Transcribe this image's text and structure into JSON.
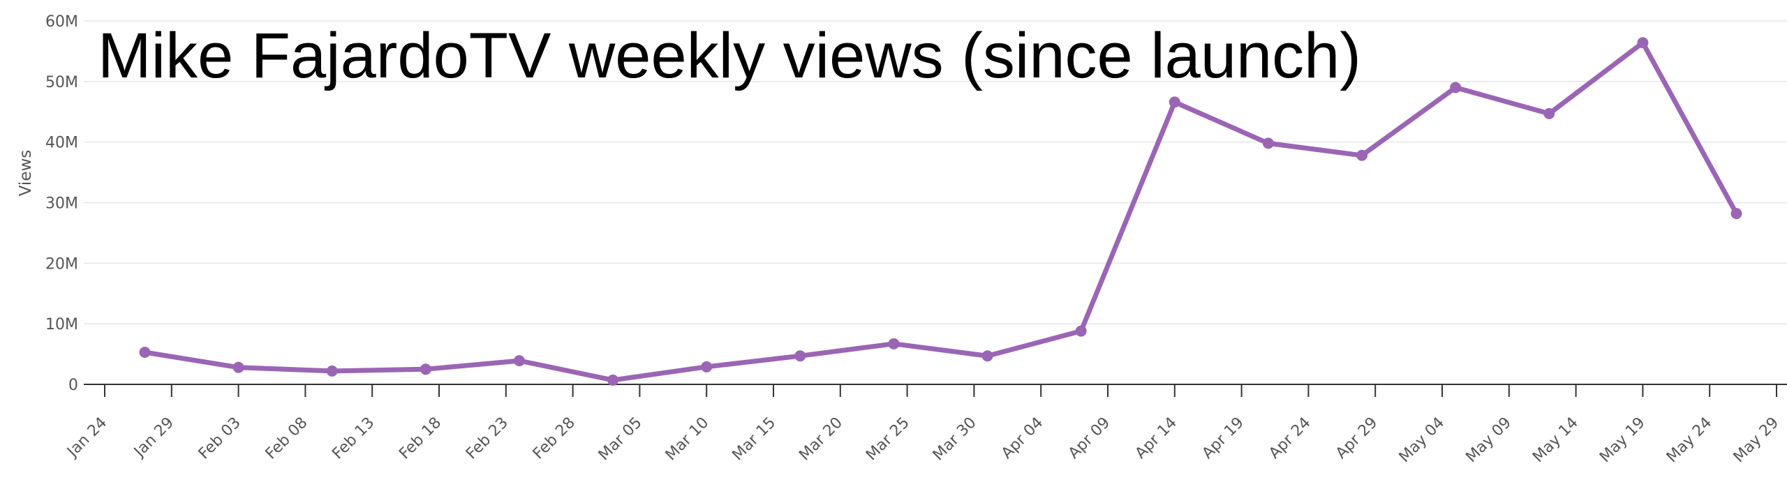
{
  "chart_data": {
    "type": "line",
    "title": "Mike FajardoTV weekly views (since launch)",
    "xlabel": "",
    "ylabel": "Views",
    "y_ticks": [
      {
        "value": 0,
        "label": "0"
      },
      {
        "value": 10000000,
        "label": "10M"
      },
      {
        "value": 20000000,
        "label": "20M"
      },
      {
        "value": 30000000,
        "label": "30M"
      },
      {
        "value": 40000000,
        "label": "40M"
      },
      {
        "value": 50000000,
        "label": "50M"
      },
      {
        "value": 60000000,
        "label": "60M"
      }
    ],
    "ylim": [
      0,
      60000000
    ],
    "xlim": [
      "2022-01-24",
      "2022-05-29"
    ],
    "x_tick_labels": [
      {
        "date": "2022-01-24",
        "label": "Jan 24"
      },
      {
        "date": "2022-01-29",
        "label": "Jan 29"
      },
      {
        "date": "2022-02-03",
        "label": "Feb 03"
      },
      {
        "date": "2022-02-08",
        "label": "Feb 08"
      },
      {
        "date": "2022-02-13",
        "label": "Feb 13"
      },
      {
        "date": "2022-02-18",
        "label": "Feb 18"
      },
      {
        "date": "2022-02-23",
        "label": "Feb 23"
      },
      {
        "date": "2022-02-28",
        "label": "Feb 28"
      },
      {
        "date": "2022-03-05",
        "label": "Mar 05"
      },
      {
        "date": "2022-03-10",
        "label": "Mar 10"
      },
      {
        "date": "2022-03-15",
        "label": "Mar 15"
      },
      {
        "date": "2022-03-20",
        "label": "Mar 20"
      },
      {
        "date": "2022-03-25",
        "label": "Mar 25"
      },
      {
        "date": "2022-03-30",
        "label": "Mar 30"
      },
      {
        "date": "2022-04-04",
        "label": "Apr 04"
      },
      {
        "date": "2022-04-09",
        "label": "Apr 09"
      },
      {
        "date": "2022-04-14",
        "label": "Apr 14"
      },
      {
        "date": "2022-04-19",
        "label": "Apr 19"
      },
      {
        "date": "2022-04-24",
        "label": "Apr 24"
      },
      {
        "date": "2022-04-29",
        "label": "Apr 29"
      },
      {
        "date": "2022-05-04",
        "label": "May 04"
      },
      {
        "date": "2022-05-09",
        "label": "May 09"
      },
      {
        "date": "2022-05-14",
        "label": "May 14"
      },
      {
        "date": "2022-05-19",
        "label": "May 19"
      },
      {
        "date": "2022-05-24",
        "label": "May 24"
      },
      {
        "date": "2022-05-29",
        "label": "May 29"
      }
    ],
    "series": [
      {
        "color": "#9b65b5",
        "points": [
          {
            "x": "2022-01-27",
            "y": 5300000
          },
          {
            "x": "2022-02-03",
            "y": 2800000
          },
          {
            "x": "2022-02-10",
            "y": 2200000
          },
          {
            "x": "2022-02-17",
            "y": 2500000
          },
          {
            "x": "2022-02-24",
            "y": 3900000
          },
          {
            "x": "2022-03-03",
            "y": 700000
          },
          {
            "x": "2022-03-10",
            "y": 2900000
          },
          {
            "x": "2022-03-17",
            "y": 4700000
          },
          {
            "x": "2022-03-24",
            "y": 6700000
          },
          {
            "x": "2022-03-31",
            "y": 4700000
          },
          {
            "x": "2022-04-07",
            "y": 8800000
          },
          {
            "x": "2022-04-14",
            "y": 46600000
          },
          {
            "x": "2022-04-21",
            "y": 39800000
          },
          {
            "x": "2022-04-28",
            "y": 37800000
          },
          {
            "x": "2022-05-05",
            "y": 49000000
          },
          {
            "x": "2022-05-12",
            "y": 44700000
          },
          {
            "x": "2022-05-19",
            "y": 56400000
          },
          {
            "x": "2022-05-26",
            "y": 28200000
          }
        ]
      }
    ],
    "grid": true,
    "legend": "none"
  },
  "colors": {
    "line": "#9b65b5",
    "grid": "#e6e6e6",
    "axis": "#333333",
    "tick_text": "#555555",
    "title": "#000000"
  }
}
